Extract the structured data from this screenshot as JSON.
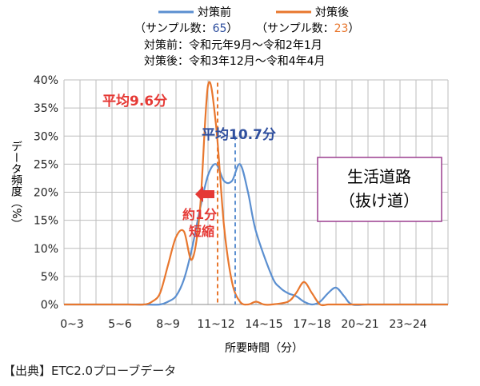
{
  "chart_data": {
    "type": "line",
    "categories": [
      "0~3",
      "5~6",
      "8~9",
      "11~12",
      "14~15",
      "17~18",
      "20~21",
      "23~24"
    ],
    "ylim": [
      0,
      40
    ],
    "y_ticks": [
      "0%",
      "5%",
      "10%",
      "15%",
      "20%",
      "25%",
      "30%",
      "35%",
      "40%"
    ],
    "ylabel": "データ頻度（%）",
    "xlabel": "所要時間（分）",
    "grid": true,
    "legend_position": "top",
    "series": [
      {
        "name": "対策前",
        "color": "#5b8fd0",
        "sample_label_prefix": "（サンプル数：",
        "sample_count": "65",
        "sample_label_suffix": "）",
        "x": [
          0,
          2,
          4,
          5,
          6,
          6.5,
          7,
          7.5,
          8,
          8.5,
          9,
          9.5,
          10,
          10.5,
          11,
          11.5,
          12,
          13,
          13.5,
          14,
          14.5,
          15,
          15.5,
          16,
          16.5,
          17,
          17.5,
          18,
          19,
          21,
          24
        ],
        "values": [
          0,
          0,
          0,
          0,
          0,
          0.5,
          1.5,
          4.5,
          10,
          17,
          23,
          25,
          22,
          22,
          25,
          20,
          13,
          5,
          3,
          2,
          1.5,
          0.5,
          0,
          0.5,
          2,
          3,
          1.5,
          0,
          0,
          0,
          0
        ]
      },
      {
        "name": "対策後",
        "color": "#e8772e",
        "sample_label_prefix": "（サンプル数：",
        "sample_count": "23",
        "sample_label_suffix": "）",
        "x": [
          0,
          2,
          4,
          5,
          5.5,
          6,
          6.5,
          7,
          7.5,
          8,
          8.5,
          9,
          9.5,
          10,
          10.5,
          11,
          11.5,
          12,
          12.5,
          13,
          14,
          14.5,
          15,
          15.5,
          16,
          16.5,
          17,
          18,
          21,
          24
        ],
        "values": [
          0,
          0,
          0,
          0,
          0.5,
          2,
          7,
          12,
          13,
          8,
          17,
          39,
          32,
          14,
          4,
          0.5,
          0,
          0.5,
          0,
          0,
          0.5,
          2,
          4,
          2,
          0,
          0,
          0,
          0,
          0,
          0
        ]
      }
    ],
    "period_before": "対策前：令和元年9月～令和2年1月",
    "period_after": "対策後：令和3年12月～令和4年4月",
    "annotations": {
      "mean_after_label": "平均9.6分",
      "mean_after_x": 9.6,
      "mean_before_label": "平均10.7分",
      "mean_before_x": 10.7,
      "reduction_line1": "約1分",
      "reduction_line2": "短縮",
      "box_line1": "生活道路",
      "box_line2": "（抜け道）"
    }
  },
  "source_note": "【出典】ETC2.0プローブデータ"
}
